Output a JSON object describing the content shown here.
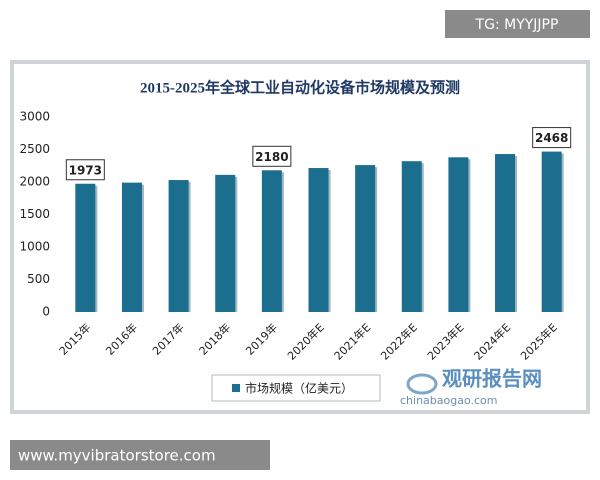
{
  "chart_data": {
    "type": "bar",
    "title": "2015-2025年全球工业自动化设备市场规模及预测",
    "categories": [
      "2015年",
      "2016年",
      "2017年",
      "2018年",
      "2019年",
      "2020年E",
      "2021年E",
      "2022年E",
      "2023年E",
      "2024年E",
      "2025年E"
    ],
    "series": [
      {
        "name": "市场规模（亿美元）",
        "color": "#1b6e8e",
        "values": [
          1973,
          1990,
          2030,
          2110,
          2180,
          2215,
          2260,
          2320,
          2380,
          2430,
          2468
        ],
        "value_labels": [
          1973,
          null,
          null,
          null,
          2180,
          null,
          null,
          null,
          null,
          null,
          2468
        ]
      }
    ],
    "ylim": [
      0,
      3000
    ],
    "yticks": [
      0,
      500,
      1000,
      1500,
      2000,
      2500,
      3000
    ],
    "grid": false,
    "legend": "bottom"
  },
  "watermarks": {
    "top": "TG: MYYJJPP",
    "bottom": "www.myvibratorstore.com",
    "logo": "观研报告网",
    "logo_url": "chinabaogao.com"
  }
}
